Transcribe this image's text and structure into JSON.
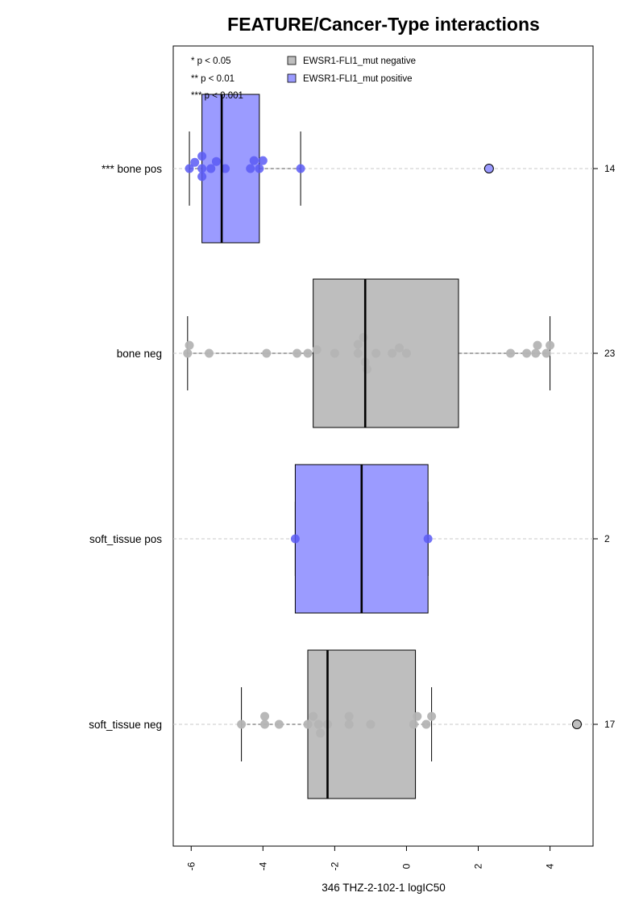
{
  "chart_data": {
    "type": "box",
    "orientation": "horizontal",
    "title": "FEATURE/Cancer-Type interactions",
    "xlabel": "346 THZ-2-102-1 logIC50",
    "xlim": [
      -6.5,
      5.2
    ],
    "xticks": [
      -6,
      -4,
      -2,
      0,
      2,
      4
    ],
    "xtick_labels": [
      "-6",
      "-4",
      "-2",
      "0",
      "2",
      "4"
    ],
    "grid": "dashed horizontal line per group",
    "significance_legend": [
      "* p < 0.05",
      "** p < 0.01",
      "*** p < 0.001"
    ],
    "legend": [
      {
        "label": "EWSR1-FLI1_mut negative",
        "color": "#bebebe"
      },
      {
        "label": "EWSR1-FLI1_mut positive",
        "color": "#9b9bff"
      }
    ],
    "groups": [
      {
        "label": "*** bone pos",
        "count": "14",
        "status": "positive",
        "q1": -5.7,
        "median": -5.15,
        "q3": -4.1,
        "whisker_low": -6.05,
        "whisker_high": -2.95,
        "outliers": [
          2.3
        ],
        "points": [
          {
            "x": -6.05,
            "j": 0
          },
          {
            "x": -5.9,
            "j": 0.35
          },
          {
            "x": -5.7,
            "j": 0.7
          },
          {
            "x": -5.7,
            "j": 0
          },
          {
            "x": -5.7,
            "j": -0.45
          },
          {
            "x": -5.45,
            "j": 0
          },
          {
            "x": -5.3,
            "j": 0.4
          },
          {
            "x": -5.05,
            "j": 0
          },
          {
            "x": -4.35,
            "j": 0
          },
          {
            "x": -4.25,
            "j": 0.45
          },
          {
            "x": -4.1,
            "j": 0
          },
          {
            "x": -4.0,
            "j": 0.45
          },
          {
            "x": -2.95,
            "j": 0
          },
          {
            "x": 2.3,
            "j": 0
          }
        ]
      },
      {
        "label": "bone neg",
        "count": "23",
        "status": "negative",
        "q1": -2.6,
        "median": -1.15,
        "q3": 1.45,
        "whisker_low": -6.1,
        "whisker_high": 4.0,
        "outliers": [],
        "points": [
          {
            "x": -6.1,
            "j": 0
          },
          {
            "x": -6.05,
            "j": 0.45
          },
          {
            "x": -5.5,
            "j": 0
          },
          {
            "x": -3.9,
            "j": 0
          },
          {
            "x": -3.05,
            "j": 0
          },
          {
            "x": -2.75,
            "j": 0
          },
          {
            "x": -2.5,
            "j": 0.2
          },
          {
            "x": -2.0,
            "j": 0
          },
          {
            "x": -1.35,
            "j": 0.5
          },
          {
            "x": -1.35,
            "j": 0
          },
          {
            "x": -1.2,
            "j": 0.9
          },
          {
            "x": -1.15,
            "j": -0.5
          },
          {
            "x": -1.1,
            "j": -0.9
          },
          {
            "x": -0.85,
            "j": 0
          },
          {
            "x": -0.4,
            "j": 0
          },
          {
            "x": -0.2,
            "j": 0.3
          },
          {
            "x": 0.0,
            "j": 0
          },
          {
            "x": 2.9,
            "j": 0
          },
          {
            "x": 3.35,
            "j": 0
          },
          {
            "x": 3.6,
            "j": 0
          },
          {
            "x": 3.65,
            "j": 0.45
          },
          {
            "x": 3.9,
            "j": 0
          },
          {
            "x": 4.0,
            "j": 0.45
          }
        ]
      },
      {
        "label": "soft_tissue pos",
        "count": "2",
        "status": "positive",
        "q1": -3.1,
        "median": -1.25,
        "q3": 0.6,
        "whisker_low": -3.1,
        "whisker_high": 0.6,
        "outliers": [],
        "points": [
          {
            "x": -3.1,
            "j": 0
          },
          {
            "x": 0.6,
            "j": 0
          }
        ]
      },
      {
        "label": "soft_tissue neg",
        "count": "17",
        "status": "negative",
        "q1": -2.75,
        "median": -2.2,
        "q3": 0.25,
        "whisker_low": -4.6,
        "whisker_high": 0.7,
        "outliers": [
          4.75
        ],
        "points": [
          {
            "x": -4.6,
            "j": 0
          },
          {
            "x": -3.95,
            "j": 0.45
          },
          {
            "x": -3.95,
            "j": 0
          },
          {
            "x": -3.55,
            "j": 0
          },
          {
            "x": -2.75,
            "j": 0
          },
          {
            "x": -2.6,
            "j": 0.45
          },
          {
            "x": -2.45,
            "j": 0
          },
          {
            "x": -2.4,
            "j": -0.5
          },
          {
            "x": -2.2,
            "j": 0
          },
          {
            "x": -1.6,
            "j": 0.45
          },
          {
            "x": -1.6,
            "j": 0
          },
          {
            "x": -1.0,
            "j": 0
          },
          {
            "x": 0.2,
            "j": 0
          },
          {
            "x": 0.3,
            "j": 0.45
          },
          {
            "x": 0.55,
            "j": 0
          },
          {
            "x": 0.7,
            "j": 0.45
          },
          {
            "x": 4.75,
            "j": 0
          }
        ]
      }
    ]
  },
  "colors": {
    "positive_fill": "#9b9bff",
    "negative_fill": "#bebebe",
    "positive_point": "#5a5af5",
    "negative_point": "#b4b4b4"
  }
}
